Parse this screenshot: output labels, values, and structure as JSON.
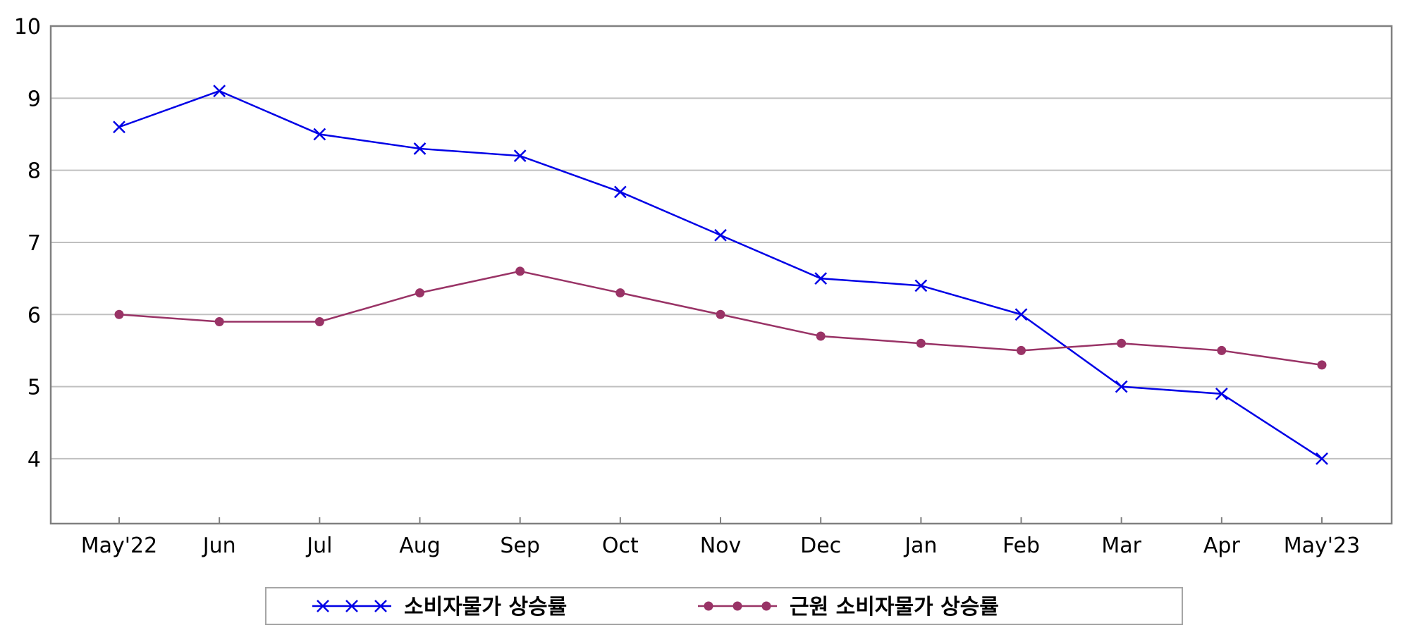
{
  "chart_data": {
    "type": "line",
    "title": "",
    "xlabel": "",
    "ylabel": "",
    "categories": [
      "May'22",
      "Jun",
      "Jul",
      "Aug",
      "Sep",
      "Oct",
      "Nov",
      "Dec",
      "Jan",
      "Feb",
      "Mar",
      "Apr",
      "May'23"
    ],
    "ylim": [
      3.1,
      10
    ],
    "yticks": [
      4,
      5,
      6,
      7,
      8,
      9,
      10
    ],
    "grid": true,
    "legend_position": "bottom",
    "series": [
      {
        "name": "소비자물가 상승률",
        "color": "#0000e6",
        "marker": "x",
        "values": [
          8.6,
          9.1,
          8.5,
          8.3,
          8.2,
          7.7,
          7.1,
          6.5,
          6.4,
          6.0,
          5.0,
          4.9,
          4.0
        ]
      },
      {
        "name": "근원 소비자물가 상승률",
        "color": "#993366",
        "marker": "circle",
        "values": [
          6.0,
          5.9,
          5.9,
          6.3,
          6.6,
          6.3,
          6.0,
          5.7,
          5.6,
          5.5,
          5.6,
          5.5,
          5.3
        ]
      }
    ]
  }
}
